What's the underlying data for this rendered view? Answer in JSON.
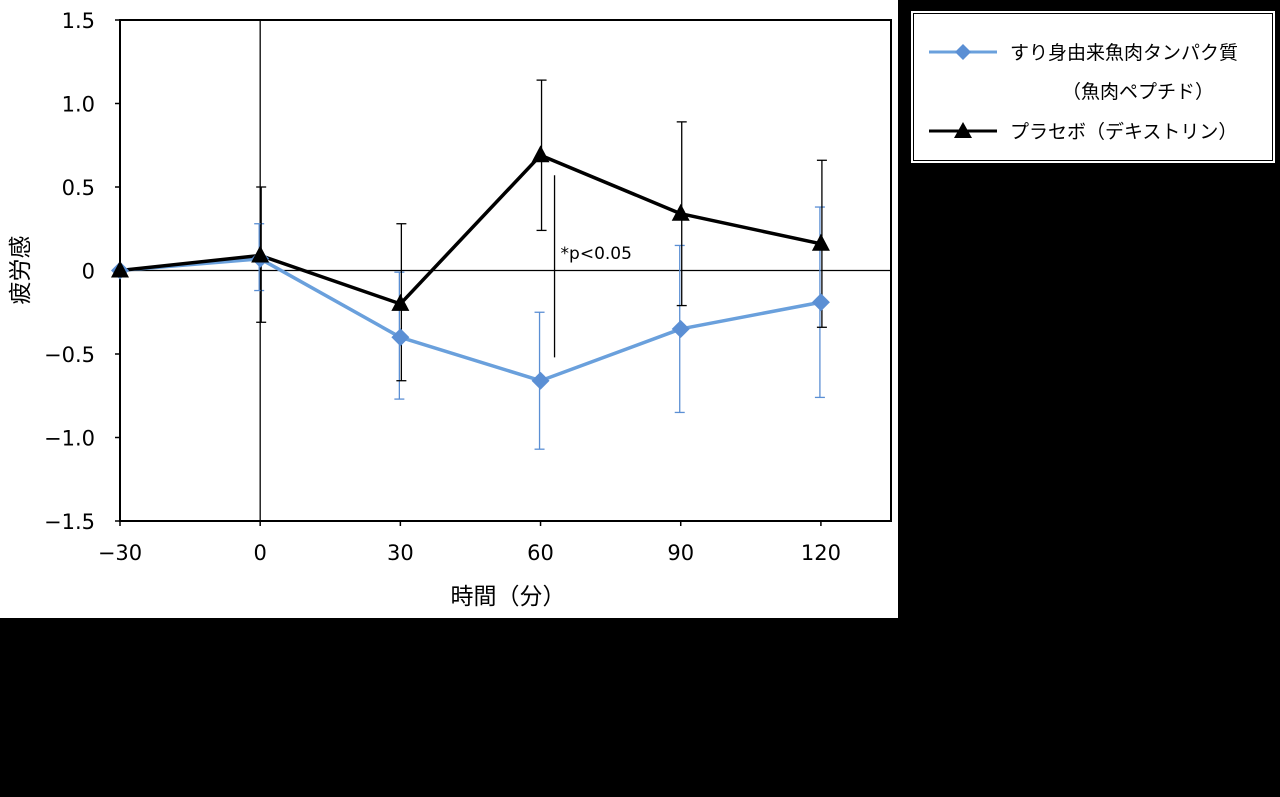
{
  "chart_data": {
    "type": "line",
    "xlabel": "時間（分）",
    "ylabel": "疲労感",
    "xlim": [
      -30,
      135
    ],
    "ylim": [
      -1.5,
      1.5
    ],
    "x_ticks": [
      "−30",
      "0",
      "30",
      "60",
      "90",
      "120"
    ],
    "x_tick_values": [
      -30,
      0,
      30,
      60,
      90,
      120
    ],
    "y_ticks": [
      "1.5",
      "1.0",
      "0.5",
      "0",
      "−0.5",
      "−1.0",
      "−1.5"
    ],
    "y_tick_values": [
      1.5,
      1.0,
      0.5,
      0,
      -0.5,
      -1.0,
      -1.5
    ],
    "x": [
      -30,
      0,
      30,
      60,
      90,
      120
    ],
    "series": [
      {
        "name_line1": "すり身由来魚肉タンパク質",
        "name_line2": "（魚肉ペプチド）",
        "color": "#5b8fd4",
        "line_color": "#6aa0dc",
        "marker": "diamond",
        "values": [
          0,
          0.07,
          -0.4,
          -0.66,
          -0.35,
          -0.19
        ],
        "err_upper": [
          0,
          0.21,
          0.39,
          0.41,
          0.5,
          0.57
        ],
        "err_lower": [
          0,
          0.19,
          0.37,
          0.41,
          0.5,
          0.57
        ]
      },
      {
        "name": "プラセボ（デキストリン）",
        "color": "#000000",
        "line_color": "#000000",
        "marker": "triangle",
        "values": [
          0,
          0.09,
          -0.2,
          0.69,
          0.34,
          0.16
        ],
        "err_upper": [
          0,
          0.41,
          0.48,
          0.45,
          0.55,
          0.5
        ],
        "err_lower": [
          0,
          0.4,
          0.46,
          0.45,
          0.55,
          0.5
        ]
      }
    ],
    "annotation": {
      "text": "*p<0.05",
      "x": 60
    },
    "reference_lines": {
      "y": 0,
      "x": 0
    },
    "grid": false,
    "legend_position": "outside-top-right"
  }
}
